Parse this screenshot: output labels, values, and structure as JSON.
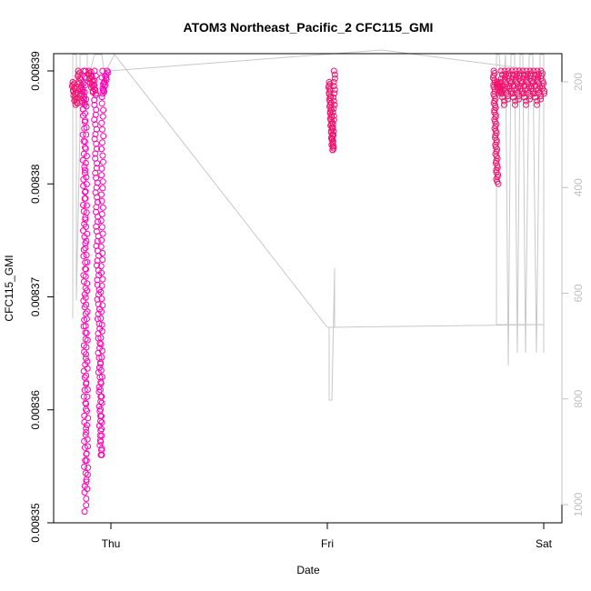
{
  "chart_data": {
    "type": "scatter",
    "title": "ATOM3 Northeast_Pacific_2 CFC115_GMI",
    "xlabel": "Date",
    "ylabel": "CFC115_GMI",
    "x_categories": [
      "Thu",
      "Fri",
      "Sat"
    ],
    "ylim": [
      0.00835,
      0.00839
    ],
    "y_ticks": [
      "0.00835",
      "0.00836",
      "0.00837",
      "0.00838",
      "0.00839"
    ],
    "y2_ticks": [
      "200",
      "400",
      "600",
      "800",
      "1000"
    ],
    "y2_inverted": true,
    "grid": false,
    "marker_color": "#ff00b4",
    "marker_color_dense": "#f0146e",
    "line_color": "#c8c8c8",
    "series": [
      {
        "values": [
          {
            "x": "Wed 22:00",
            "y_range": [
              0.008386,
              0.00839
            ]
          },
          {
            "x": "Wed 23:00",
            "y_range": [
              0.008351,
              0.00839
            ]
          },
          {
            "x": "Wed 23:30",
            "y_range": [
              0.008356,
              0.00839
            ]
          },
          {
            "x": "Fri 00:15",
            "y_range": [
              0.008383,
              0.008389
            ]
          },
          {
            "x": "Sat 19:00",
            "y_range": [
              0.00838,
              0.00839
            ]
          },
          {
            "x": "Sat 20:30",
            "y_range": [
              0.008387,
              0.00839
            ]
          }
        ]
      }
    ],
    "secondary_series": {
      "y_axis": "right",
      "values": [
        {
          "x": "Wed 22:00",
          "y": 640
        },
        {
          "x": "Wed 23:45",
          "y": 130
        },
        {
          "x": "Fri 00:00",
          "y": 680
        },
        {
          "x": "Fri 00:05",
          "y": 810
        },
        {
          "x": "Fri 00:15",
          "y": 680
        },
        {
          "x": "Sat 19:00",
          "y": 660
        },
        {
          "x": "Sat 20:30",
          "y": 720
        }
      ]
    }
  }
}
